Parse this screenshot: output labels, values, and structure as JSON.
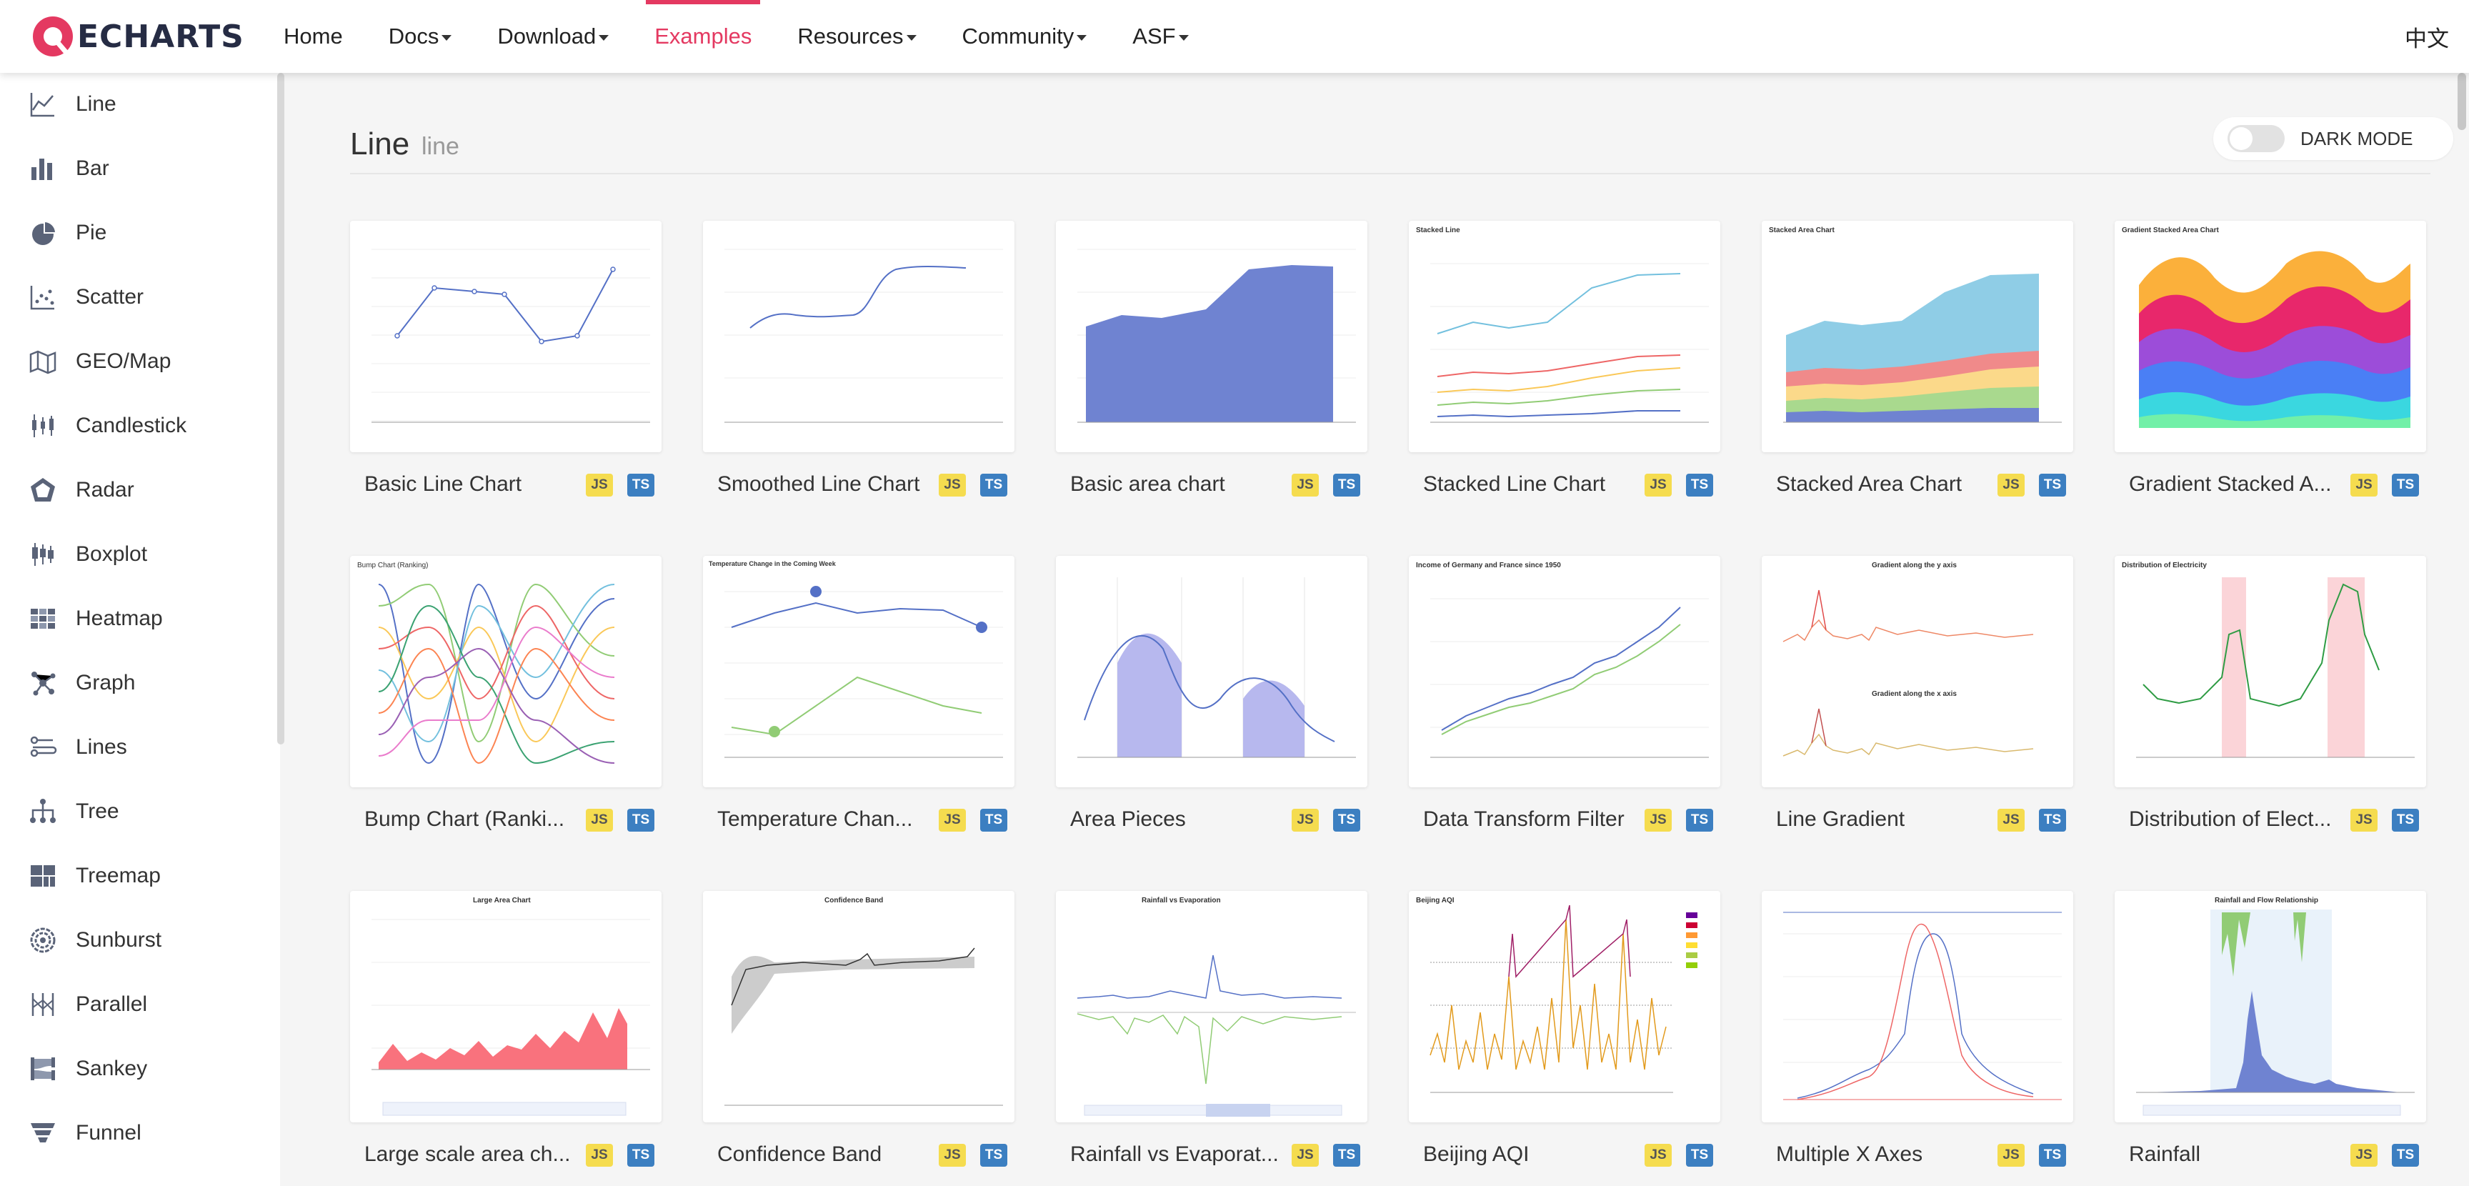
{
  "header": {
    "logo_text": "ECHARTS",
    "nav": [
      {
        "label": "Home",
        "caret": false,
        "active": false
      },
      {
        "label": "Docs",
        "caret": true,
        "active": false
      },
      {
        "label": "Download",
        "caret": true,
        "active": false
      },
      {
        "label": "Examples",
        "caret": false,
        "active": true
      },
      {
        "label": "Resources",
        "caret": true,
        "active": false
      },
      {
        "label": "Community",
        "caret": true,
        "active": false
      },
      {
        "label": "ASF",
        "caret": true,
        "active": false
      }
    ],
    "language": "中文"
  },
  "sidebar": {
    "items": [
      {
        "label": "Line",
        "icon": "line-chart-icon"
      },
      {
        "label": "Bar",
        "icon": "bar-chart-icon"
      },
      {
        "label": "Pie",
        "icon": "pie-chart-icon"
      },
      {
        "label": "Scatter",
        "icon": "scatter-chart-icon"
      },
      {
        "label": "GEO/Map",
        "icon": "map-icon"
      },
      {
        "label": "Candlestick",
        "icon": "candlestick-icon"
      },
      {
        "label": "Radar",
        "icon": "radar-icon"
      },
      {
        "label": "Boxplot",
        "icon": "boxplot-icon"
      },
      {
        "label": "Heatmap",
        "icon": "heatmap-icon"
      },
      {
        "label": "Graph",
        "icon": "graph-icon"
      },
      {
        "label": "Lines",
        "icon": "lines-icon"
      },
      {
        "label": "Tree",
        "icon": "tree-icon"
      },
      {
        "label": "Treemap",
        "icon": "treemap-icon"
      },
      {
        "label": "Sunburst",
        "icon": "sunburst-icon"
      },
      {
        "label": "Parallel",
        "icon": "parallel-icon"
      },
      {
        "label": "Sankey",
        "icon": "sankey-icon"
      },
      {
        "label": "Funnel",
        "icon": "funnel-icon"
      }
    ]
  },
  "main": {
    "title": "Line",
    "subtitle": "line",
    "dark_mode_label": "DARK MODE",
    "dark_mode_on": false,
    "badge_js": "JS",
    "badge_ts": "TS",
    "cards": [
      {
        "title": "Basic Line Chart"
      },
      {
        "title": "Smoothed Line Chart"
      },
      {
        "title": "Basic area chart"
      },
      {
        "title": "Stacked Line Chart"
      },
      {
        "title": "Stacked Area Chart"
      },
      {
        "title": "Gradient Stacked A..."
      },
      {
        "title": "Bump Chart (Ranki..."
      },
      {
        "title": "Temperature Chan..."
      },
      {
        "title": "Area Pieces"
      },
      {
        "title": "Data Transform Filter"
      },
      {
        "title": "Line Gradient"
      },
      {
        "title": "Distribution of Elect..."
      },
      {
        "title": "Large scale area ch..."
      },
      {
        "title": "Confidence Band"
      },
      {
        "title": "Rainfall vs Evaporat..."
      },
      {
        "title": "Beijing AQI"
      },
      {
        "title": "Multiple X Axes"
      },
      {
        "title": "Rainfall"
      }
    ],
    "thumb_labels": {
      "stacked_line": "Stacked Line",
      "stacked_area": "Stacked Area Chart",
      "gradient_stacked": "Gradient Stacked Area Chart",
      "bump": "Bump Chart (Ranking)",
      "temperature": "Temperature Change in the Coming Week",
      "income": "Income of Germany and France since 1950",
      "gradient_y": "Gradient along the y axis",
      "gradient_x": "Gradient along the x axis",
      "electricity": "Distribution of Electricity",
      "large_area": "Large Area Chart",
      "confidence": "Confidence Band",
      "rainfall_evap": "Rainfall vs Evaporation",
      "aqi": "Beijing AQI",
      "rainfall_flow": "Rainfall and Flow Relationship"
    }
  },
  "colors": {
    "accent": "#e43961",
    "echarts_blue": "#5470c6",
    "echarts_green": "#91cc75",
    "echarts_yellow": "#fac858",
    "echarts_red": "#ee6666",
    "echarts_cyan": "#73c0de",
    "js_badge": "#f5dc4f",
    "ts_badge": "#3c7fc1"
  }
}
